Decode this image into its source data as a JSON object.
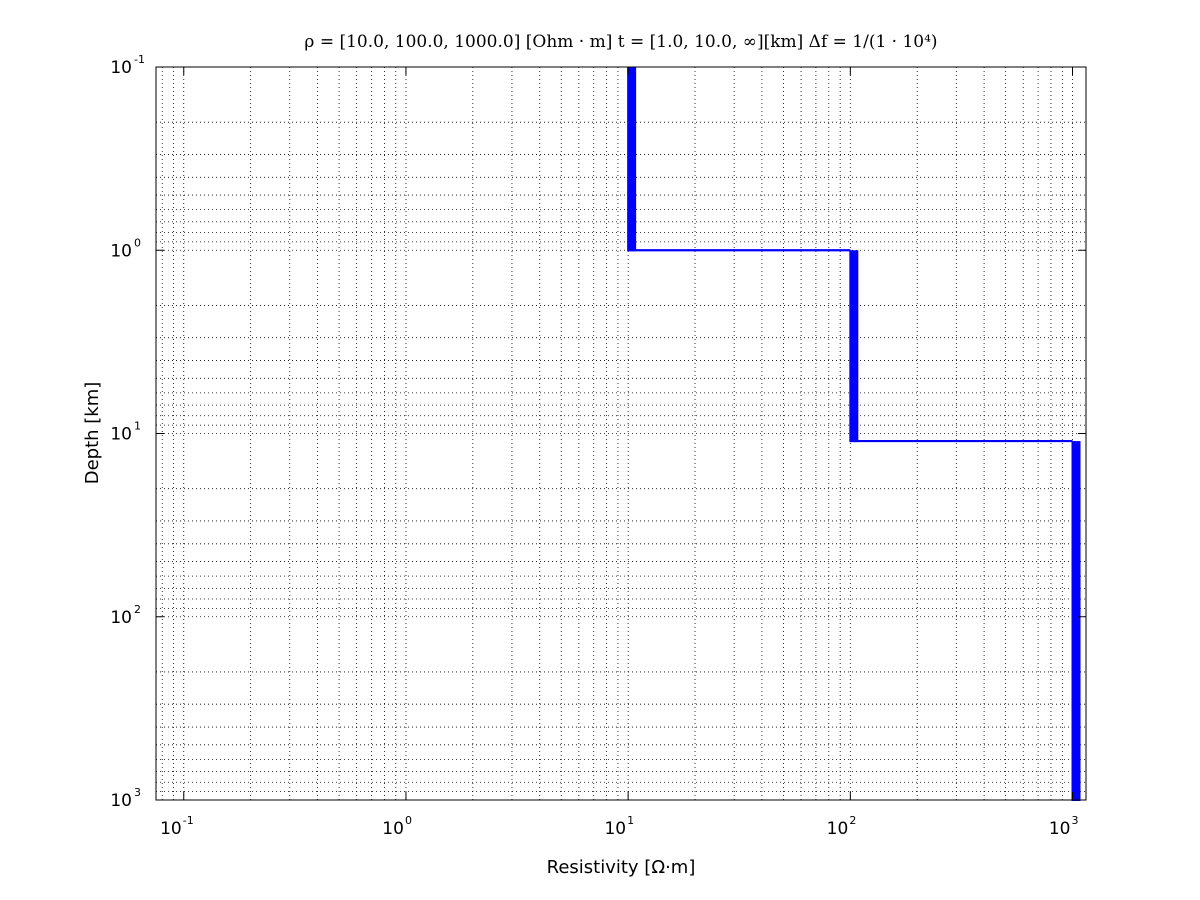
{
  "chart_data": {
    "type": "line",
    "title": "ρ = [10.0, 100.0, 1000.0]  [Ohm · m]    t = [1.0, 10.0, ∞][km]    Δf = 1/(1 · 10⁴)",
    "xlabel": "Resistivity [Ω·m]",
    "ylabel": "Depth [km]",
    "x_scale": "log",
    "y_scale": "log",
    "y_inverted": true,
    "xlim": [
      0.075,
      1150
    ],
    "ylim": [
      0.1,
      1000
    ],
    "grid": true,
    "x_ticks": [
      {
        "base": "10",
        "exp": "-1",
        "value": 0.1
      },
      {
        "base": "10",
        "exp": "0",
        "value": 1
      },
      {
        "base": "10",
        "exp": "1",
        "value": 10
      },
      {
        "base": "10",
        "exp": "2",
        "value": 100
      },
      {
        "base": "10",
        "exp": "3",
        "value": 1000
      }
    ],
    "y_ticks": [
      {
        "base": "10",
        "exp": "-1",
        "value": 0.1
      },
      {
        "base": "10",
        "exp": "0",
        "value": 1
      },
      {
        "base": "10",
        "exp": "1",
        "value": 10
      },
      {
        "base": "10",
        "exp": "2",
        "value": 100
      },
      {
        "base": "10",
        "exp": "3",
        "value": 1000
      }
    ],
    "series": [
      {
        "color": "#0000ff",
        "points": [
          {
            "x": 10,
            "y": 0.1
          },
          {
            "x": 10,
            "y": 1
          },
          {
            "x": 100,
            "y": 1
          },
          {
            "x": 100,
            "y": 11
          },
          {
            "x": 1000,
            "y": 11
          },
          {
            "x": 1000,
            "y": 1000
          }
        ]
      }
    ]
  }
}
